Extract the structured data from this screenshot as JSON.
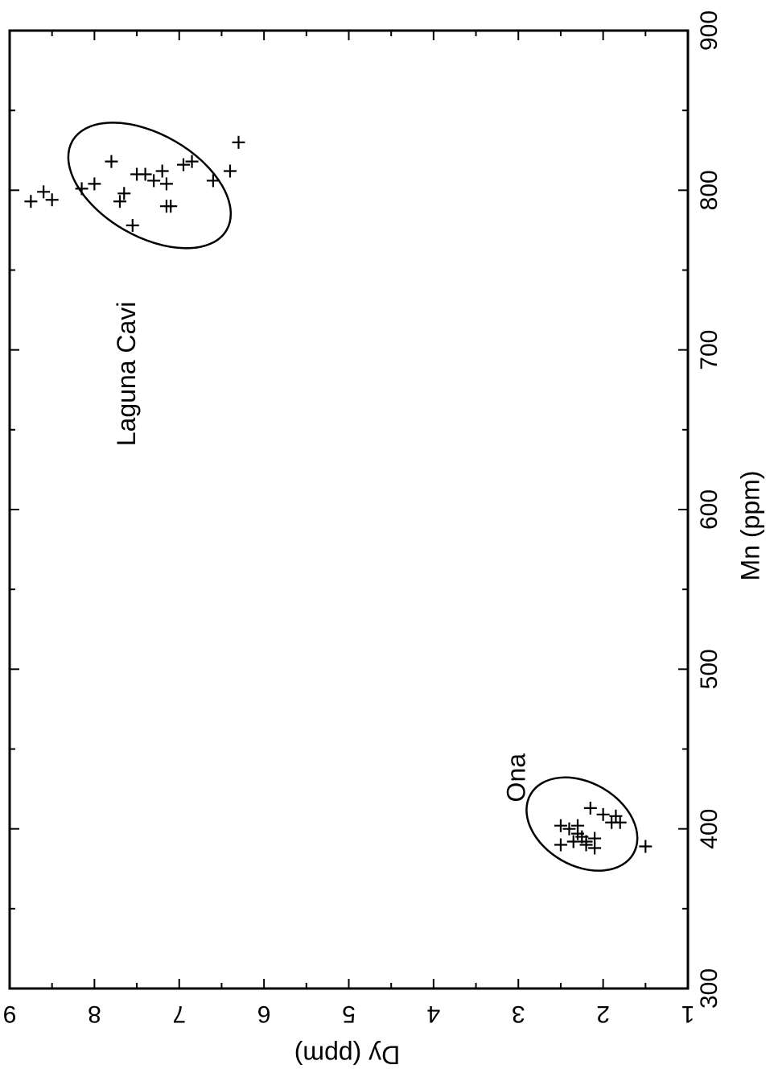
{
  "chart_data": {
    "type": "scatter",
    "title": "",
    "xlabel": "Dy (ppm)",
    "ylabel": "Mn (ppm)",
    "xlim": [
      1,
      9
    ],
    "ylim": [
      300,
      900
    ],
    "x_ticks": [
      "1",
      "2",
      "3",
      "4",
      "5",
      "6",
      "7",
      "8",
      "9"
    ],
    "y_ticks": [
      "300",
      "400",
      "500",
      "600",
      "700",
      "800",
      "900"
    ],
    "grid": false,
    "marker": "+",
    "series": [
      {
        "name": "Laguna Cavi",
        "points": [
          [
            6.3,
            830
          ],
          [
            6.85,
            818
          ],
          [
            6.95,
            816
          ],
          [
            6.4,
            812
          ],
          [
            7.2,
            812
          ],
          [
            7.4,
            810
          ],
          [
            7.5,
            810
          ],
          [
            7.8,
            818
          ],
          [
            6.6,
            806
          ],
          [
            7.3,
            806
          ],
          [
            7.15,
            804
          ],
          [
            8.0,
            804
          ],
          [
            8.15,
            801
          ],
          [
            8.6,
            799
          ],
          [
            7.65,
            798
          ],
          [
            7.7,
            793
          ],
          [
            8.75,
            793
          ],
          [
            7.15,
            790
          ],
          [
            7.1,
            790
          ],
          [
            8.5,
            794
          ],
          [
            7.55,
            778
          ]
        ]
      },
      {
        "name": "Ona",
        "points": [
          [
            2.5,
            402
          ],
          [
            2.4,
            400
          ],
          [
            2.3,
            402
          ],
          [
            2.15,
            413
          ],
          [
            2.0,
            409
          ],
          [
            1.85,
            408
          ],
          [
            1.9,
            404
          ],
          [
            1.8,
            404
          ],
          [
            2.3,
            397
          ],
          [
            2.2,
            392
          ],
          [
            2.25,
            395
          ],
          [
            2.1,
            394
          ],
          [
            2.5,
            390
          ],
          [
            2.2,
            390
          ],
          [
            2.1,
            388
          ],
          [
            2.35,
            392
          ],
          [
            1.5,
            389
          ]
        ]
      }
    ],
    "ellipses": [
      {
        "series": "Laguna Cavi",
        "center": [
          7.35,
          803
        ],
        "semi_axes": [
          1.05,
          32
        ],
        "tilt": "negative"
      },
      {
        "series": "Ona",
        "center": [
          2.25,
          403
        ],
        "semi_axes": [
          0.7,
          26
        ],
        "tilt": "negative"
      }
    ],
    "annotations": [
      {
        "text": "Laguna Cavi",
        "at": [
          7.6,
          685
        ]
      },
      {
        "text": "Ona",
        "at": [
          3.0,
          432
        ]
      }
    ]
  }
}
